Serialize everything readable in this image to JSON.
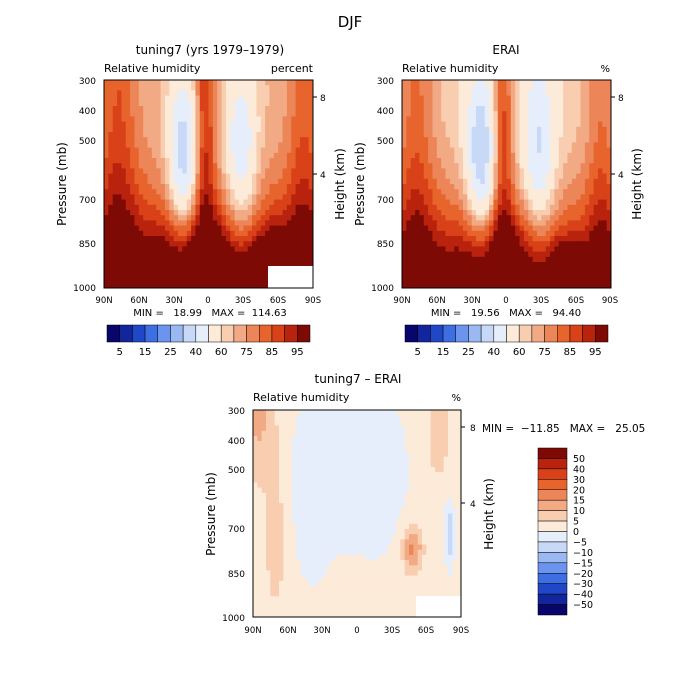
{
  "page": {
    "title": "DJF"
  },
  "colors": {
    "main": [
      "#08066b",
      "#13259c",
      "#1f47c7",
      "#3d6ee2",
      "#6b94ee",
      "#9ab8f2",
      "#c7d9f7",
      "#e6eefb",
      "#fdebd9",
      "#f8cdb0",
      "#f2aa85",
      "#ec8658",
      "#e8642d",
      "#d94218",
      "#b9230e",
      "#7e0a06"
    ],
    "diff": [
      "#08066b",
      "#13259c",
      "#1f47c7",
      "#3d6ee2",
      "#6b94ee",
      "#9ab8f2",
      "#c7d9f7",
      "#e6eefb",
      "#fdebd9",
      "#f8cdb0",
      "#f2aa85",
      "#ec8658",
      "#e8642d",
      "#d94218",
      "#b9230e",
      "#7e0a06"
    ]
  },
  "chart_data": [
    {
      "type": "heatmap",
      "title": "tuning7 (yrs 1979–1979)",
      "variable": "Relative humidity",
      "units": "percent",
      "ylabel": "Pressure (mb)",
      "ylabel_right": "Height (km)",
      "x_ticks": [
        "90N",
        "60N",
        "30N",
        "0",
        "30S",
        "60S",
        "90S"
      ],
      "y_ticks": [
        "300",
        "400",
        "500",
        "700",
        "850",
        "1000"
      ],
      "right_ticks": [
        "8",
        "4"
      ],
      "ylim": [
        300,
        1000
      ],
      "xlim": [
        90,
        -90
      ],
      "stats_text": "MIN =   18.99   MAX =  114.63",
      "min": 18.99,
      "max": 114.63,
      "levels": [
        "5",
        "15",
        "25",
        "40",
        "60",
        "75",
        "85",
        "95"
      ]
    },
    {
      "type": "heatmap",
      "title": "ERAI",
      "variable": "Relative humidity",
      "units": "%",
      "ylabel": "Pressure (mb)",
      "ylabel_right": "Height (km)",
      "x_ticks": [
        "90N",
        "60N",
        "30N",
        "0",
        "30S",
        "60S",
        "90S"
      ],
      "y_ticks": [
        "300",
        "400",
        "500",
        "700",
        "850",
        "1000"
      ],
      "right_ticks": [
        "8",
        "4"
      ],
      "ylim": [
        300,
        1000
      ],
      "xlim": [
        90,
        -90
      ],
      "stats_text": "MIN =   19.56   MAX =   94.40",
      "min": 19.56,
      "max": 94.4,
      "levels": [
        "5",
        "15",
        "25",
        "40",
        "60",
        "75",
        "85",
        "95"
      ]
    },
    {
      "type": "heatmap",
      "title": "tuning7 – ERAI",
      "variable": "Relative humidity",
      "units": "%",
      "ylabel": "Pressure (mb)",
      "ylabel_right": "Height (km)",
      "x_ticks": [
        "90N",
        "60N",
        "30N",
        "0",
        "30S",
        "60S",
        "90S"
      ],
      "y_ticks": [
        "300",
        "400",
        "500",
        "700",
        "850",
        "1000"
      ],
      "right_ticks": [
        "8",
        "4"
      ],
      "ylim": [
        300,
        1000
      ],
      "xlim": [
        90,
        -90
      ],
      "stats_text": "MIN =  −11.85   MAX =   25.05",
      "min": -11.85,
      "max": 25.05,
      "levels": [
        "50",
        "40",
        "30",
        "20",
        "15",
        "10",
        "5",
        "0",
        "−5",
        "−10",
        "−15",
        "−20",
        "−30",
        "−40",
        "−50"
      ]
    }
  ]
}
